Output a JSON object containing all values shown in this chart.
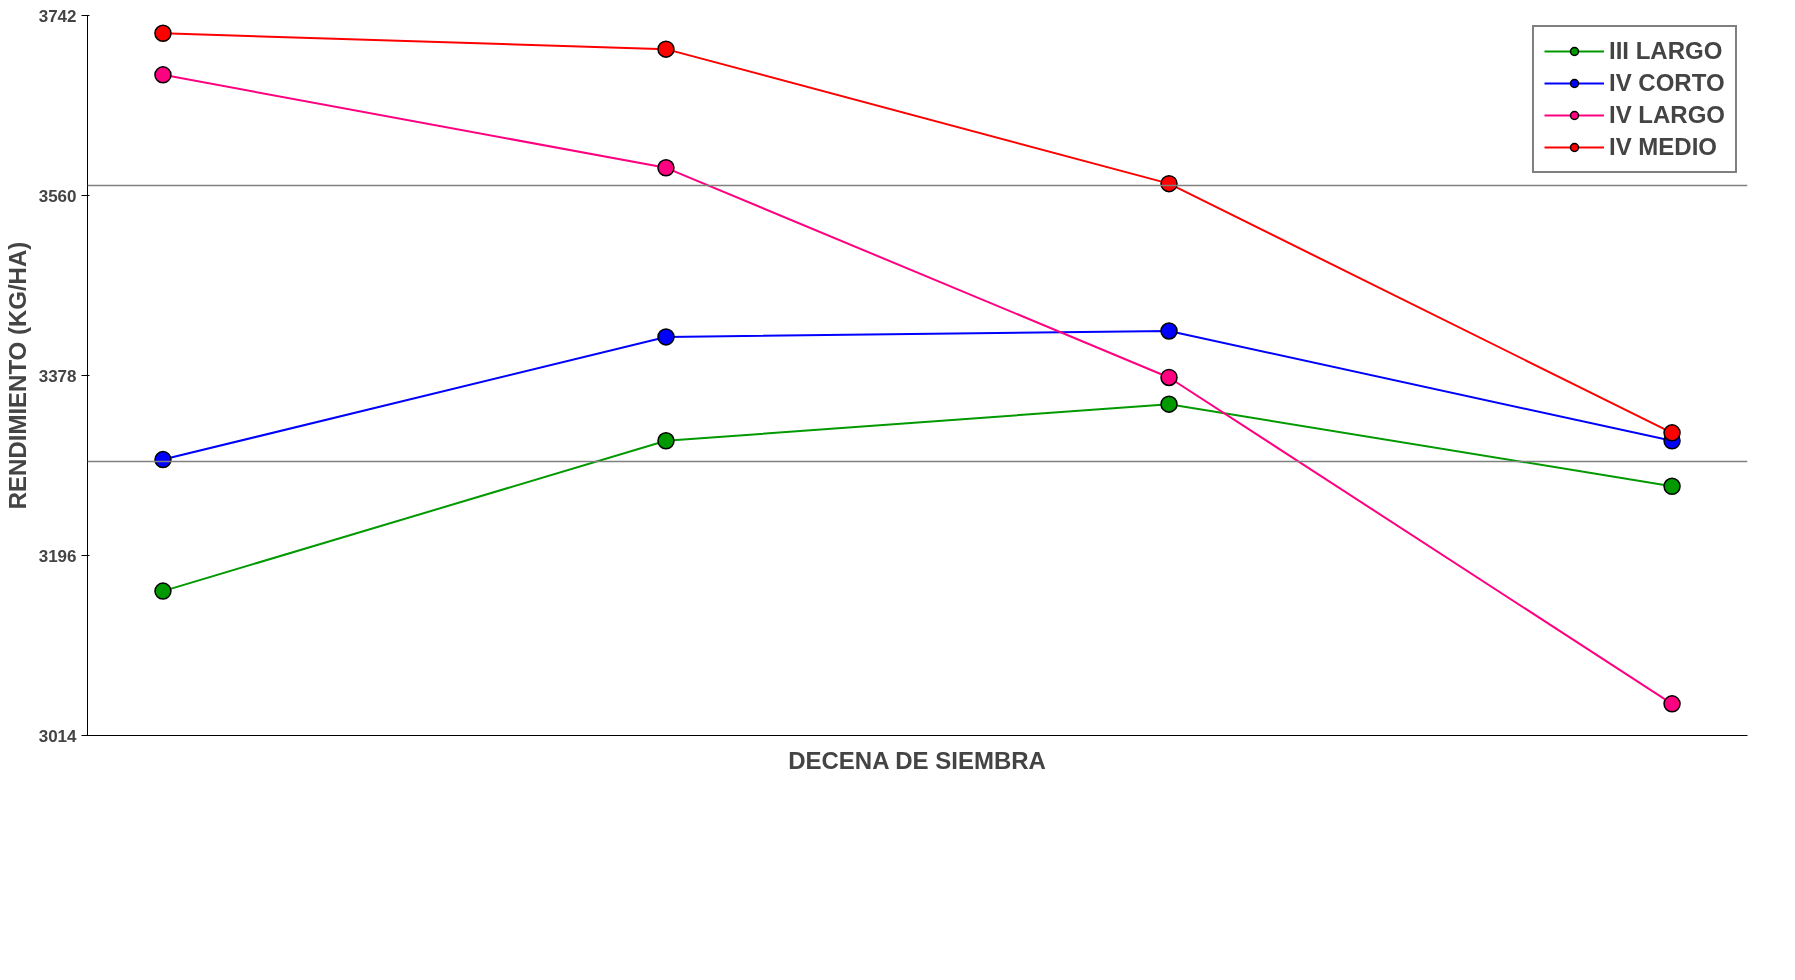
{
  "chart_data": {
    "type": "line",
    "xlabel": "DECENA DE SIEMBRA",
    "ylabel": "RENDIMIENTO (KG/HA)",
    "categories": [
      null,
      null,
      null,
      null
    ],
    "series": [
      {
        "name": "III LARGO",
        "color": "#009900",
        "values": [
          3160,
          3312,
          3349,
          3266
        ]
      },
      {
        "name": "IV CORTO",
        "color": "#0000ff",
        "values": [
          3293,
          3417,
          3423,
          3312
        ]
      },
      {
        "name": "IV LARGO",
        "color": "#ff0080",
        "values": [
          3682,
          3588,
          3376,
          3046
        ]
      },
      {
        "name": "IV MEDIO",
        "color": "#ff0000",
        "values": [
          3724,
          3708,
          3572,
          3320
        ]
      }
    ],
    "ylim": [
      3014,
      3742
    ],
    "yticks": [
      3014,
      3196,
      3378,
      3560,
      3742
    ],
    "ref_lines": [
      {
        "axis": "y",
        "value": 3570,
        "color": "#808080"
      },
      {
        "axis": "y",
        "value": 3291,
        "color": "#808080"
      }
    ],
    "grid": false,
    "legend": "top right",
    "marker": "circle",
    "line_style": "solid"
  }
}
